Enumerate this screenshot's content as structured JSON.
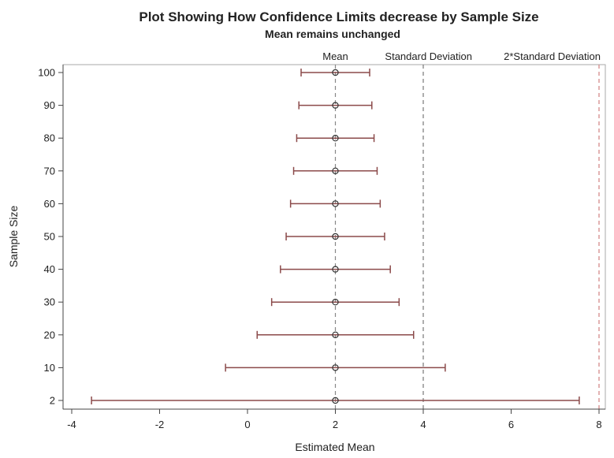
{
  "chart_data": {
    "type": "scatter",
    "title": "Plot Showing How Confidence Limits decrease by Sample Size",
    "subtitle": "Mean remains unchanged",
    "xlabel": "Estimated Mean",
    "ylabel": "Sample Size",
    "xlim": [
      -4.2,
      8.2
    ],
    "xticks": [
      -4,
      -2,
      0,
      2,
      4,
      6,
      8
    ],
    "categories": [
      "2",
      "10",
      "20",
      "30",
      "40",
      "50",
      "60",
      "70",
      "80",
      "90",
      "100"
    ],
    "series": [
      {
        "mean": [
          2,
          2,
          2,
          2,
          2,
          2,
          2,
          2,
          2,
          2,
          2
        ],
        "lower": [
          -3.55,
          -0.5,
          0.22,
          0.55,
          0.75,
          0.88,
          0.98,
          1.05,
          1.12,
          1.17,
          1.22
        ],
        "upper": [
          7.55,
          4.5,
          3.78,
          3.45,
          3.25,
          3.12,
          3.02,
          2.95,
          2.88,
          2.83,
          2.78
        ]
      }
    ],
    "reference_lines": [
      {
        "label": "Mean",
        "x": 2
      },
      {
        "label": "Standard Deviation",
        "x": 4
      },
      {
        "label": "2*Standard Deviation",
        "x": 8
      }
    ],
    "grid": false,
    "colors": {
      "errorbar": "#8B4A4A",
      "marker": "#333333",
      "ref_mean": "#888888",
      "ref_sd": "#777777",
      "ref_2sd": "#D08080",
      "axis": "#444444",
      "frame": "#AAAAAA"
    }
  }
}
